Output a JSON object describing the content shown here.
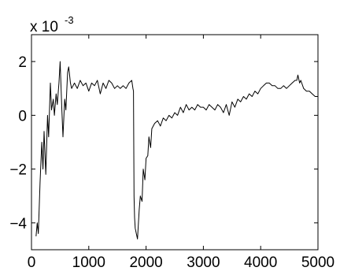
{
  "chart_data": {
    "type": "line",
    "title": "",
    "xlabel": "",
    "ylabel": "",
    "xlim": [
      0,
      5000
    ],
    "ylim": [
      -0.005,
      0.003
    ],
    "y_multiplier_label": {
      "base": "x 10",
      "exponent": "-3"
    },
    "x_ticks": [
      {
        "value": 0,
        "label": "0"
      },
      {
        "value": 1000,
        "label": "1000"
      },
      {
        "value": 2000,
        "label": "2000"
      },
      {
        "value": 3000,
        "label": "3000"
      },
      {
        "value": 4000,
        "label": "4000"
      },
      {
        "value": 5000,
        "label": "5000"
      }
    ],
    "y_ticks": [
      {
        "value": -0.004,
        "label": "−4"
      },
      {
        "value": -0.002,
        "label": "−2"
      },
      {
        "value": 0,
        "label": "0"
      },
      {
        "value": 0.002,
        "label": "2"
      }
    ],
    "grid": false,
    "line_color": "#000000",
    "series": [
      {
        "x": [
          80,
          100,
          120,
          150,
          180,
          200,
          220,
          250,
          280,
          300,
          330,
          350,
          380,
          400,
          430,
          450,
          480,
          500,
          530,
          550,
          580,
          600,
          630,
          650,
          680,
          700,
          750,
          800,
          850,
          900,
          950,
          1000,
          1050,
          1100,
          1150,
          1200,
          1250,
          1300,
          1350,
          1400,
          1450,
          1500,
          1550,
          1600,
          1650,
          1700,
          1750,
          1770,
          1780,
          1790,
          1800,
          1810,
          1830,
          1850,
          1880,
          1900,
          1930,
          1950,
          1980,
          2000,
          2030,
          2050,
          2080,
          2100,
          2150,
          2200,
          2250,
          2300,
          2350,
          2400,
          2450,
          2500,
          2550,
          2600,
          2650,
          2700,
          2750,
          2800,
          2850,
          2900,
          2950,
          3000,
          3050,
          3100,
          3150,
          3200,
          3250,
          3300,
          3350,
          3400,
          3450,
          3500,
          3550,
          3600,
          3650,
          3700,
          3750,
          3800,
          3850,
          3900,
          3950,
          4000,
          4050,
          4100,
          4150,
          4200,
          4250,
          4300,
          4350,
          4400,
          4450,
          4500,
          4550,
          4600,
          4630,
          4650,
          4680,
          4700,
          4750,
          4800,
          4850,
          4900,
          4950,
          5000
        ],
        "y": [
          -0.0045,
          -0.004,
          -0.0044,
          -0.0025,
          -0.001,
          -0.002,
          -0.0006,
          -0.0022,
          0.0,
          -0.0008,
          0.0012,
          0.0002,
          0.0006,
          0.0,
          0.0008,
          0.0004,
          0.0012,
          0.002,
          0.0002,
          -0.0008,
          0.0006,
          0.0002,
          0.0016,
          0.0018,
          0.0012,
          0.001,
          0.0012,
          0.001,
          0.0013,
          0.0011,
          0.0012,
          0.0009,
          0.0012,
          0.0011,
          0.0013,
          0.0008,
          0.0012,
          0.001,
          0.0013,
          0.0012,
          0.001,
          0.0011,
          0.001,
          0.0011,
          0.001,
          0.0012,
          0.0013,
          0.001,
          0.0009,
          -0.003,
          -0.0038,
          -0.0042,
          -0.0044,
          -0.0046,
          -0.0035,
          -0.003,
          -0.0032,
          -0.002,
          -0.0024,
          -0.0016,
          -0.0015,
          -0.0008,
          -0.0012,
          -0.0005,
          -0.0003,
          -0.0002,
          -0.0004,
          -0.0001,
          -0.0002,
          0.0,
          -0.0001,
          0.0001,
          0.0,
          0.0003,
          0.0001,
          0.0004,
          0.0002,
          0.0003,
          0.0002,
          0.0004,
          0.0003,
          0.0003,
          0.0002,
          0.0004,
          0.0003,
          0.0002,
          0.0004,
          0.0003,
          0.0001,
          0.0004,
          0.0,
          0.0005,
          0.0003,
          0.0006,
          0.0005,
          0.0007,
          0.0006,
          0.0008,
          0.0007,
          0.0009,
          0.0008,
          0.001,
          0.0011,
          0.0012,
          0.0012,
          0.0011,
          0.0011,
          0.001,
          0.001,
          0.0011,
          0.001,
          0.0011,
          0.0012,
          0.0013,
          0.0013,
          0.0015,
          0.0012,
          0.0013,
          0.001,
          0.0009,
          0.0009,
          0.0008,
          0.0007,
          0.0007
        ]
      }
    ]
  }
}
